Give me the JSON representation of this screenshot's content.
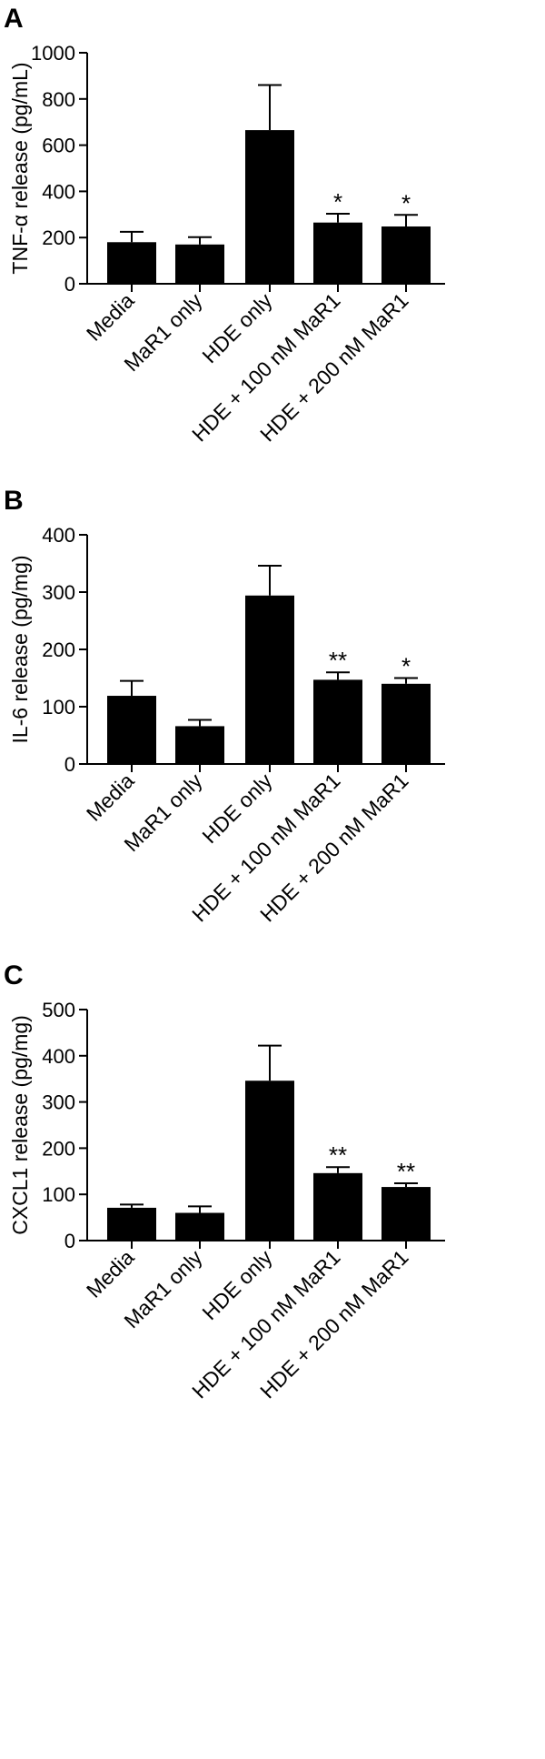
{
  "chart_data": [
    {
      "type": "bar",
      "panel_label": "A",
      "ylabel": "TNF-α release (pg/mL)",
      "xlabel": "",
      "ylim": [
        0,
        1000
      ],
      "yticks": [
        0,
        200,
        400,
        600,
        800,
        1000
      ],
      "grid": false,
      "categories": [
        "Media",
        "MaR1 only",
        "HDE only",
        "HDE + 100 nM MaR1",
        "HDE + 200 nM MaR1"
      ],
      "series": [
        {
          "values": [
            180,
            170,
            665,
            265,
            248
          ],
          "error": [
            45,
            32,
            195,
            38,
            50
          ]
        }
      ],
      "annotations": [
        "",
        "",
        "",
        "*",
        "*"
      ]
    },
    {
      "type": "bar",
      "panel_label": "B",
      "ylabel": "IL-6 release (pg/mg)",
      "xlabel": "",
      "ylim": [
        0,
        400
      ],
      "yticks": [
        0,
        100,
        200,
        300,
        400
      ],
      "grid": false,
      "categories": [
        "Media",
        "MaR1 only",
        "HDE only",
        "HDE + 100 nM MaR1",
        "HDE + 200 nM MaR1"
      ],
      "series": [
        {
          "values": [
            119,
            66,
            294,
            147,
            140
          ],
          "error": [
            26,
            11,
            52,
            13,
            10
          ]
        }
      ],
      "annotations": [
        "",
        "",
        "",
        "**",
        "*"
      ]
    },
    {
      "type": "bar",
      "panel_label": "C",
      "ylabel": "CXCL1 release (pg/mg)",
      "xlabel": "",
      "ylim": [
        0,
        500
      ],
      "yticks": [
        0,
        100,
        200,
        300,
        400,
        500
      ],
      "grid": false,
      "categories": [
        "Media",
        "MaR1 only",
        "HDE only",
        "HDE + 100 nM MaR1",
        "HDE + 200 nM MaR1"
      ],
      "series": [
        {
          "values": [
            71,
            60,
            346,
            146,
            116
          ],
          "error": [
            7,
            14,
            76,
            13,
            8
          ]
        }
      ],
      "annotations": [
        "",
        "",
        "",
        "**",
        "**"
      ]
    }
  ]
}
